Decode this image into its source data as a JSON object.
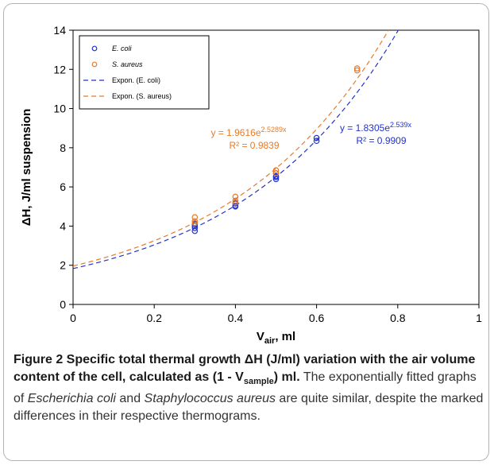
{
  "chart_data": {
    "type": "scatter",
    "xlabel_main": "V",
    "xlabel_sub": "air",
    "xlabel_suffix": ", ml",
    "ylabel": "ΔH, J/ml suspension",
    "xlim": [
      0,
      1
    ],
    "ylim": [
      0,
      14
    ],
    "x_ticks": [
      0,
      0.2,
      0.4,
      0.6,
      0.8,
      1
    ],
    "x_tick_labels": [
      "0",
      "0.2",
      "0.4",
      "0.6",
      "0.8",
      "1"
    ],
    "y_ticks": [
      0,
      2,
      4,
      6,
      8,
      10,
      12,
      14
    ],
    "y_tick_labels": [
      "0",
      "2",
      "4",
      "6",
      "8",
      "10",
      "12",
      "14"
    ],
    "grid": false,
    "legend_position": "top-left",
    "series": [
      {
        "name": "E. coli",
        "italic": true,
        "kind": "points",
        "color": "#2233cc",
        "points": [
          [
            0.3,
            3.75
          ],
          [
            0.3,
            3.9
          ],
          [
            0.3,
            4.0
          ],
          [
            0.3,
            4.1
          ],
          [
            0.4,
            5.0
          ],
          [
            0.4,
            5.05
          ],
          [
            0.4,
            5.15
          ],
          [
            0.5,
            6.4
          ],
          [
            0.5,
            6.5
          ],
          [
            0.5,
            6.55
          ],
          [
            0.5,
            6.7
          ],
          [
            0.6,
            8.35
          ],
          [
            0.6,
            8.5
          ]
        ]
      },
      {
        "name": "S. aureus",
        "italic": true,
        "kind": "points",
        "color": "#e87a2a",
        "points": [
          [
            0.3,
            4.15
          ],
          [
            0.3,
            4.25
          ],
          [
            0.3,
            4.45
          ],
          [
            0.4,
            5.2
          ],
          [
            0.4,
            5.3
          ],
          [
            0.4,
            5.5
          ],
          [
            0.5,
            6.7
          ],
          [
            0.5,
            6.85
          ],
          [
            0.7,
            11.95
          ],
          [
            0.7,
            12.05
          ]
        ]
      },
      {
        "name": "Expon. (E. coli)",
        "italic": false,
        "kind": "fit",
        "color": "#2233cc",
        "a": 1.8305,
        "b": 2.539
      },
      {
        "name": "Expon. (S. aureus)",
        "italic": false,
        "kind": "fit",
        "color": "#e87a2a",
        "a": 1.9616,
        "b": 2.5289
      }
    ],
    "annotations": [
      {
        "id": "saureus",
        "eq_base": "y = 1.9616e",
        "eq_exp": "2.5289x",
        "r2": "R² = 0.9839",
        "color": "#e87a2a"
      },
      {
        "id": "ecoli",
        "eq_base": "y = 1.8305e",
        "eq_exp": "2.539x",
        "r2": "R² = 0.9909",
        "color": "#2233cc"
      }
    ]
  },
  "caption": {
    "title": "Figure 2 Specific total thermal growth ΔH (J/ml) variation with the air volume content of the cell, calculated as (1 - V",
    "title_sub": "sample",
    "title_end": ") ml.",
    "text_1": " The exponentially fitted graphs of ",
    "species_1": "Escherichia coli",
    "text_2": " and ",
    "species_2": "Staphylococcus aureus",
    "text_3": " are quite similar, despite the marked differences in their respective thermograms."
  }
}
